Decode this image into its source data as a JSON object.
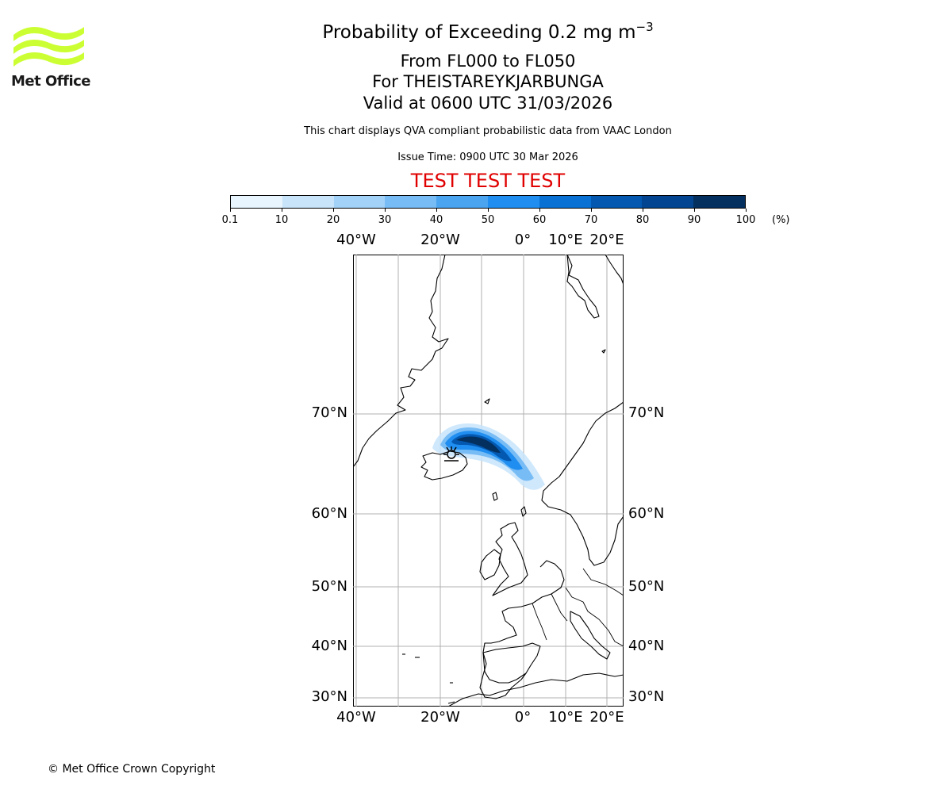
{
  "logo": {
    "text": "Met Office",
    "color": "#ccff33"
  },
  "title": {
    "main": "Probability of Exceeding 0.2 mg m",
    "superscript": "−3",
    "line2": "From FL000 to FL050",
    "line3": "For THEISTAREYKJARBUNGA",
    "line4": "Valid at 0600 UTC 31/03/2026"
  },
  "description": "This chart displays QVA compliant probabilistic data from VAAC London",
  "issue_time": "Issue Time: 0900 UTC 30 Mar 2026",
  "test_banner": "TEST TEST TEST",
  "colorbar": {
    "ticks": [
      "0.1",
      "10",
      "20",
      "30",
      "40",
      "50",
      "60",
      "70",
      "80",
      "90",
      "100"
    ],
    "unit": "(%)",
    "colors": [
      "#e8f4fe",
      "#c7e4fb",
      "#a3d2f8",
      "#78bcf5",
      "#4aa4f0",
      "#1f8ef0",
      "#0a71d4",
      "#0458b0",
      "#034590",
      "#03305f"
    ]
  },
  "map": {
    "top_lon_labels": [
      "40°W",
      "20°W",
      "0°",
      "10°E",
      "20°E"
    ],
    "bottom_lon_labels": [
      "40°W",
      "20°W",
      "0°",
      "10°E",
      "20°E"
    ],
    "left_lat_labels": [
      "70°N",
      "60°N",
      "50°N",
      "40°N",
      "30°N"
    ],
    "right_lat_labels": [
      "70°N",
      "60°N",
      "50°N",
      "40°N",
      "30°N"
    ],
    "volcano_icon": "volcano-icon"
  },
  "copyright": "© Met Office Crown Copyright"
}
